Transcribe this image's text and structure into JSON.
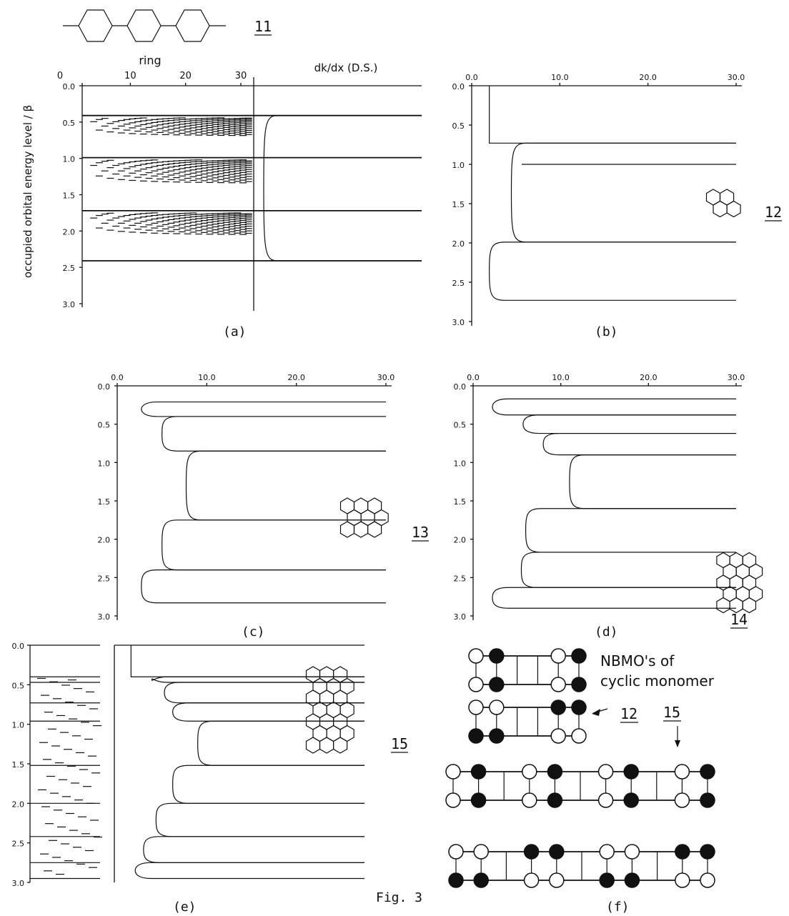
{
  "figure_caption": "Fig. 3",
  "compound_labels": {
    "c11": "11",
    "c12": "12",
    "c13": "13",
    "c14": "14",
    "c15a": "15",
    "c15b": "15",
    "c12f": "12"
  },
  "panel_labels": {
    "a": "(a)",
    "b": "(b)",
    "c": "(c)",
    "d": "(d)",
    "e": "(e)",
    "f": "(f)"
  },
  "axis_text": {
    "ylabel": "occupied orbital energy level / β",
    "ring_label": "ring",
    "dkdx_label": "dk/dx (D.S.)"
  },
  "nbmo_caption": {
    "line1": "NBMO's of",
    "line2": "cyclic monomer"
  },
  "colors": {
    "ink": "#111111",
    "background": "#ffffff"
  },
  "chart_data": [
    {
      "id": "a",
      "type": "line",
      "title": "",
      "xlabel": "ring",
      "x2label": "dk/dx (D.S.)",
      "ylabel": "occupied orbital energy level / β",
      "xticks": [
        "0",
        "10",
        "20",
        "30"
      ],
      "yticks": [
        "0.0",
        "0.5",
        "1.0",
        "1.5",
        "2.0",
        "2.5",
        "3.0"
      ],
      "ylim": [
        0,
        3
      ],
      "band_edges": [
        0.41,
        0.99,
        1.72,
        2.41
      ],
      "flat_levels": [
        0.99,
        1.72
      ],
      "series": [
        {
          "band": [
            0.41,
            2.41
          ]
        }
      ]
    },
    {
      "id": "b",
      "type": "line",
      "xticks": [
        "0.0",
        "10.0",
        "20.0",
        "30.0"
      ],
      "yticks": [
        "0.0",
        "0.5",
        "1.0",
        "1.5",
        "2.0",
        "2.5",
        "3.0"
      ],
      "xlim": [
        0,
        30
      ],
      "ylim": [
        0,
        3
      ],
      "flat_levels": [
        1.0
      ],
      "series": [
        {
          "band": [
            0,
            0.73
          ],
          "xmin": 2.0
        },
        {
          "band": [
            0.73,
            1.99
          ],
          "xmin": 4.5
        },
        {
          "band": [
            1.99,
            2.73
          ],
          "xmin": 2.0
        }
      ]
    },
    {
      "id": "c",
      "type": "line",
      "xticks": [
        "0.0",
        "10.0",
        "20.0",
        "30.0"
      ],
      "yticks": [
        "0.0",
        "0.5",
        "1.0",
        "1.5",
        "2.0",
        "2.5",
        "3.0"
      ],
      "xlim": [
        0,
        30
      ],
      "ylim": [
        0,
        3
      ],
      "flat_levels": [],
      "series": [
        {
          "band": [
            0.21,
            0.4
          ],
          "xmin": 2.7
        },
        {
          "band": [
            0.4,
            0.85
          ],
          "xmin": 5.0
        },
        {
          "band": [
            0.85,
            1.75
          ],
          "xmin": 7.7
        },
        {
          "band": [
            1.75,
            2.4
          ],
          "xmin": 5.0
        },
        {
          "band": [
            2.4,
            2.83
          ],
          "xmin": 2.7
        }
      ]
    },
    {
      "id": "d",
      "type": "line",
      "xticks": [
        "0.0",
        "10.0",
        "20.0",
        "30.0"
      ],
      "yticks": [
        "0.0",
        "0.5",
        "1.0",
        "1.5",
        "2.0",
        "2.5",
        "3.0"
      ],
      "xlim": [
        0,
        30
      ],
      "ylim": [
        0,
        3
      ],
      "flat_levels": [],
      "series": [
        {
          "band": [
            0.17,
            0.38
          ],
          "xmin": 2.2
        },
        {
          "band": [
            0.38,
            0.62
          ],
          "xmin": 5.7
        },
        {
          "band": [
            0.62,
            0.9
          ],
          "xmin": 8.0
        },
        {
          "band": [
            0.9,
            1.6
          ],
          "xmin": 11.0
        },
        {
          "band": [
            1.6,
            2.17
          ],
          "xmin": 6.0
        },
        {
          "band": [
            2.17,
            2.63
          ],
          "xmin": 5.5
        },
        {
          "band": [
            2.63,
            2.9
          ],
          "xmin": 2.2
        }
      ]
    },
    {
      "id": "e",
      "type": "line",
      "yticks": [
        "0.0",
        "0.5",
        "1.0",
        "1.5",
        "2.0",
        "2.5",
        "3.0"
      ],
      "xlim": [
        0,
        30
      ],
      "ylim": [
        0,
        3
      ],
      "flat_levels": [],
      "series": [
        {
          "band": [
            0,
            0.4
          ],
          "xmin": 2.0
        },
        {
          "band": [
            0.4,
            0.47
          ],
          "xmin": 4.5
        },
        {
          "band": [
            0.47,
            0.73
          ],
          "xmin": 6.0
        },
        {
          "band": [
            0.73,
            0.96
          ],
          "xmin": 7.0
        },
        {
          "band": [
            0.96,
            1.52
          ],
          "xmin": 10.0
        },
        {
          "band": [
            1.52,
            2.0
          ],
          "xmin": 7.0
        },
        {
          "band": [
            2.0,
            2.42
          ],
          "xmin": 5.0
        },
        {
          "band": [
            2.42,
            2.75
          ],
          "xmin": 3.5
        },
        {
          "band": [
            2.75,
            2.95
          ],
          "xmin": 2.5
        }
      ]
    }
  ]
}
